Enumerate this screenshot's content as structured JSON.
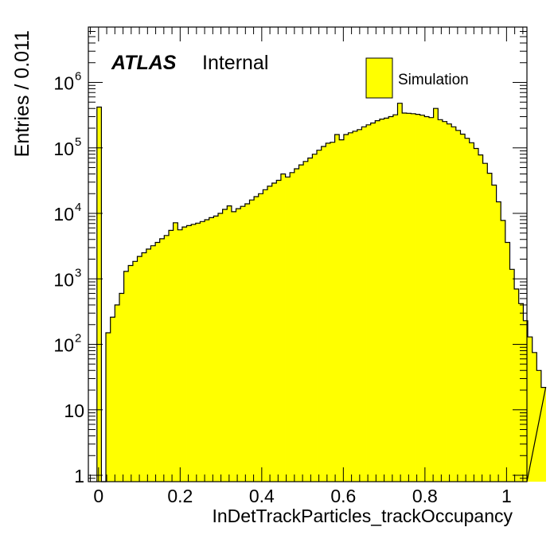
{
  "chart_data": {
    "type": "bar",
    "title": "",
    "xlabel": "InDetTrackParticles_trackOccupancy",
    "ylabel": "Entries / 0.011",
    "xlim": [
      -0.025,
      1.05
    ],
    "ylim": [
      0.8,
      7000000
    ],
    "y_scale": "log",
    "bin_width": 0.011,
    "x_ticks": [
      0,
      0.2,
      0.4,
      0.6,
      0.8,
      1
    ],
    "x_tick_labels": [
      "0",
      "0.2",
      "0.4",
      "0.6",
      "0.8",
      "1"
    ],
    "y_tick_labels": [
      {
        "value": 1,
        "base": "1",
        "exp": ""
      },
      {
        "value": 10,
        "base": "10",
        "exp": ""
      },
      {
        "value": 100,
        "base": "10",
        "exp": "2"
      },
      {
        "value": 1000,
        "base": "10",
        "exp": "3"
      },
      {
        "value": 10000,
        "base": "10",
        "exp": "4"
      },
      {
        "value": 100000,
        "base": "10",
        "exp": "5"
      },
      {
        "value": 1000000,
        "base": "10",
        "exp": "6"
      }
    ],
    "fill_color": "#ffff00",
    "line_color": "#000000",
    "bin_edges_start": -0.004,
    "values": [
      420000,
      0,
      150,
      260,
      400,
      600,
      1300,
      1600,
      1850,
      2200,
      2500,
      2850,
      3200,
      3600,
      4100,
      4600,
      5500,
      7200,
      5600,
      6200,
      6500,
      6800,
      7100,
      7500,
      8000,
      8600,
      9100,
      10000,
      11500,
      13000,
      10600,
      11800,
      12800,
      14000,
      16000,
      18000,
      20000,
      23000,
      26000,
      29000,
      32000,
      40000,
      36000,
      42000,
      48000,
      55000,
      62000,
      70000,
      80000,
      92000,
      105000,
      118000,
      122000,
      160000,
      133000,
      160000,
      170000,
      180000,
      190000,
      210000,
      225000,
      240000,
      260000,
      275000,
      285000,
      300000,
      320000,
      480000,
      340000,
      338000,
      333000,
      326000,
      316000,
      300000,
      290000,
      400000,
      270000,
      252000,
      232000,
      210000,
      185000,
      162000,
      140000,
      120000,
      98000,
      78000,
      58000,
      41000,
      27000,
      15000,
      7800,
      3600,
      1400,
      700,
      420,
      230,
      130,
      75,
      40,
      22
    ]
  },
  "atlas": {
    "bold_label": "ATLAS",
    "regular_label": "Internal"
  },
  "legend": {
    "entry": "Simulation",
    "position": "top-right"
  }
}
